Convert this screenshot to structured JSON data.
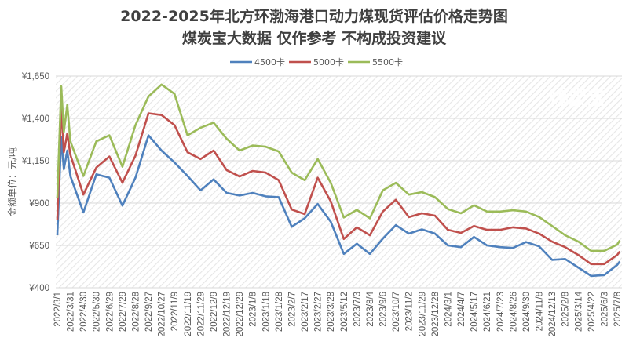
{
  "chart_data": {
    "type": "line",
    "title": "2022-2025年北方环渤海港口动力煤现货评估价格走势图",
    "subtitle": "煤炭宝大数据 仅作参考 不构成投资建议",
    "watermark": "煤炭宝",
    "xlabel": "",
    "ylabel": "金额单位：元/吨",
    "ylim": [
      400,
      1650
    ],
    "yticks": [
      400,
      650,
      900,
      1150,
      1400,
      1650
    ],
    "ytick_labels": [
      "¥400",
      "¥650",
      "¥900",
      "¥1,150",
      "¥1,400",
      "¥1,650"
    ],
    "grid": true,
    "legend_position": "top",
    "categories": [
      "2022/3/1",
      "2022/3/31",
      "2022/4/30",
      "2022/5/30",
      "2022/6/29",
      "2022/7/29",
      "2022/8/28",
      "2022/9/27",
      "2022/10/27",
      "2022/11/9",
      "2022/11/19",
      "2022/11/29",
      "2022/12/9",
      "2022/12/19",
      "2022/12/29",
      "2023/1/8",
      "2023/1/18",
      "2023/1/28",
      "2023/2/7",
      "2023/2/17",
      "2023/2/27",
      "2023/3/28",
      "2023/5/12",
      "2023/7/3",
      "2023/8/4",
      "2023/9/6",
      "2023/10/7",
      "2023/11/2",
      "2023/11/29",
      "2023/12/28",
      "2024/3/1",
      "2024/4/7",
      "2024/5/17",
      "2024/6/21",
      "2024/7/23",
      "2024/8/26",
      "2024/9/30",
      "2024/11/8",
      "2024/12/13",
      "2025/2/8",
      "2025/3/14",
      "2025/4/22",
      "2025/6/3",
      "2025/7/8"
    ],
    "x": [
      "2022/3/1",
      "2022/3/10",
      "2022/3/16",
      "2022/3/24",
      "2022/3/31",
      "2022/4/30",
      "2022/5/30",
      "2022/6/29",
      "2022/7/29",
      "2022/8/28",
      "2022/9/27",
      "2022/10/27",
      "2022/11/9",
      "2022/11/19",
      "2022/11/29",
      "2022/12/9",
      "2022/12/19",
      "2022/12/29",
      "2023/1/8",
      "2023/1/18",
      "2023/1/28",
      "2023/2/7",
      "2023/2/17",
      "2023/2/27",
      "2023/3/28",
      "2023/5/12",
      "2023/7/3",
      "2023/8/4",
      "2023/9/6",
      "2023/10/7",
      "2023/11/2",
      "2023/11/29",
      "2023/12/28",
      "2024/3/1",
      "2024/4/7",
      "2024/5/17",
      "2024/6/21",
      "2024/7/23",
      "2024/8/26",
      "2024/9/30",
      "2024/11/8",
      "2024/12/13",
      "2025/2/8",
      "2025/3/14",
      "2025/4/22",
      "2025/6/3",
      "2025/7/8",
      "2025/7/15"
    ],
    "series": [
      {
        "name": "4500卡",
        "color": "#4f81bd",
        "values": [
          710,
          1290,
          1100,
          1210,
          1060,
          845,
          1070,
          1050,
          885,
          1050,
          1300,
          1210,
          1140,
          1060,
          975,
          1040,
          960,
          945,
          960,
          940,
          935,
          760,
          810,
          895,
          790,
          600,
          660,
          600,
          690,
          770,
          720,
          745,
          720,
          650,
          640,
          700,
          650,
          640,
          635,
          670,
          645,
          565,
          570,
          520,
          470,
          475,
          535,
          555
        ]
      },
      {
        "name": "5000卡",
        "color": "#c0504d",
        "values": [
          800,
          1480,
          1200,
          1310,
          1185,
          950,
          1110,
          1175,
          1020,
          1180,
          1430,
          1420,
          1360,
          1200,
          1160,
          1210,
          1095,
          1057,
          1090,
          1080,
          1035,
          862,
          835,
          1050,
          910,
          688,
          757,
          710,
          850,
          920,
          817,
          840,
          826,
          742,
          724,
          765,
          742,
          742,
          757,
          750,
          720,
          672,
          640,
          594,
          540,
          540,
          594,
          615
        ]
      },
      {
        "name": "5500卡",
        "color": "#9bbb59",
        "values": [
          930,
          1590,
          1320,
          1480,
          1265,
          1060,
          1265,
          1300,
          1115,
          1360,
          1530,
          1600,
          1545,
          1300,
          1345,
          1375,
          1280,
          1210,
          1240,
          1233,
          1205,
          1080,
          1035,
          1160,
          1020,
          815,
          860,
          810,
          975,
          1020,
          950,
          965,
          935,
          865,
          840,
          887,
          850,
          850,
          858,
          850,
          818,
          765,
          710,
          673,
          618,
          618,
          655,
          680
        ]
      }
    ]
  }
}
